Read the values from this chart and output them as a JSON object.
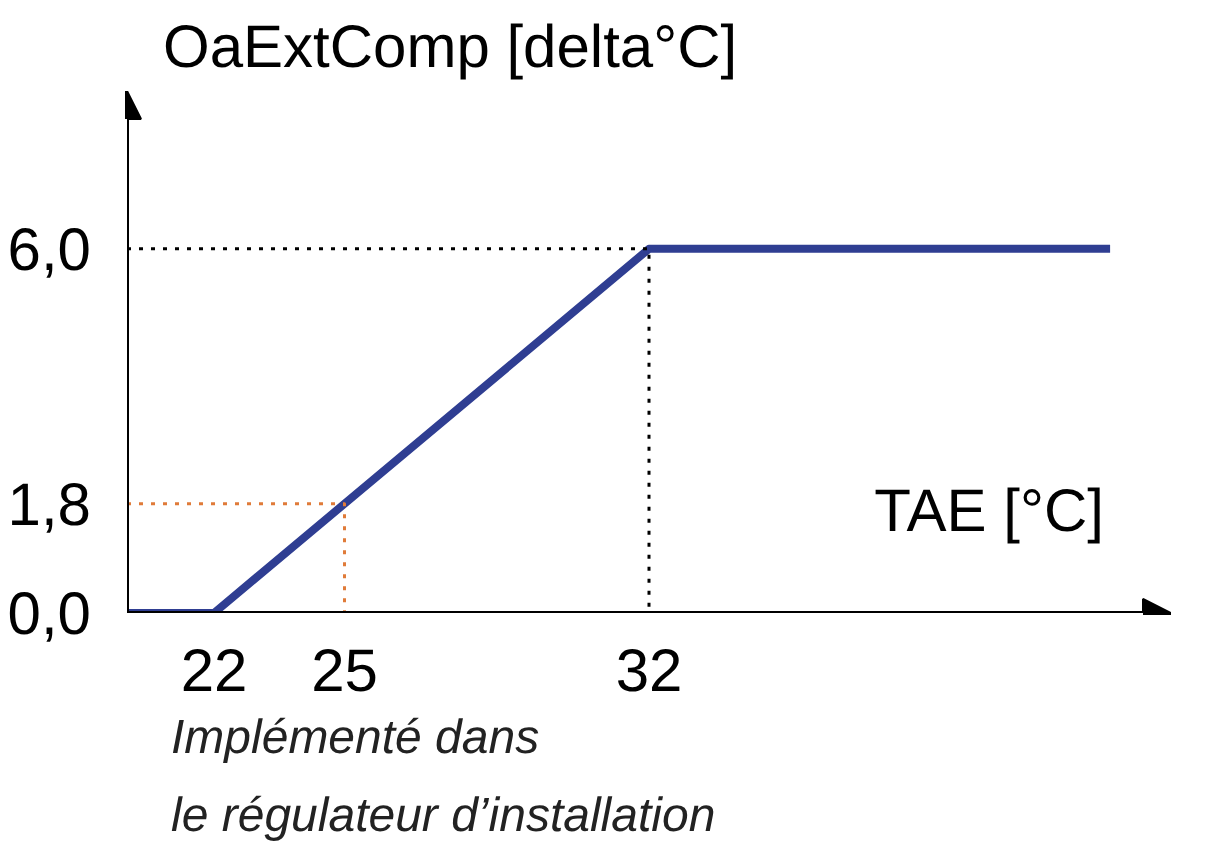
{
  "chart_data": {
    "type": "line",
    "xlabel": "TAE [°C]",
    "ylabel": "OaExtComp [delta°C]",
    "xlim": [
      20,
      44
    ],
    "ylim": [
      0,
      8.6
    ],
    "xticks": [
      22,
      25,
      32
    ],
    "yticks": [
      {
        "value": 0,
        "label": "0,0"
      },
      {
        "value": 1.8,
        "label": "1,8"
      },
      {
        "value": 6,
        "label": "6,0"
      }
    ],
    "grid": false,
    "marker": "none",
    "series": [
      {
        "color": "#2f3e92",
        "x": [
          20,
          22,
          32,
          42.6
        ],
        "values": [
          0,
          0,
          6,
          6
        ]
      },
      {
        "color": "#000000",
        "line_style": "dotted",
        "x": [
          20,
          32,
          32
        ],
        "values": [
          6,
          6,
          0
        ]
      },
      {
        "color": "#e07b39",
        "line_style": "dotted",
        "x": [
          20,
          25,
          25
        ],
        "values": [
          1.8,
          1.8,
          0
        ]
      }
    ],
    "annotations": [
      "Implémenté dans\nle régulateur d’installation"
    ]
  }
}
